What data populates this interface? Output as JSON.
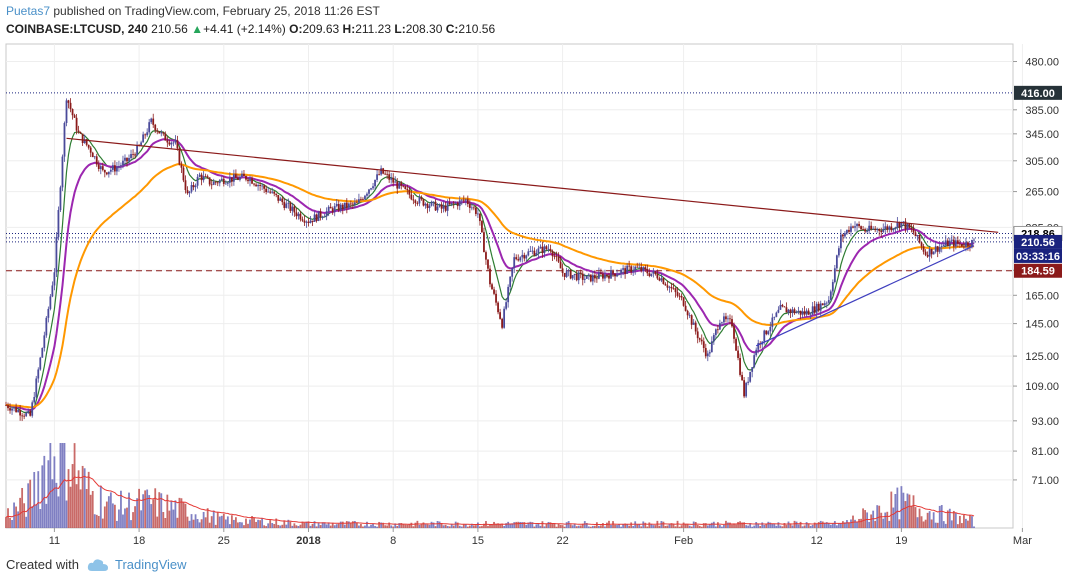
{
  "header": {
    "author": "Puetas7",
    "published_text": " published on TradingView.com, February 25, 2018 11:26 EST",
    "symbol": "COINBASE:LTCUSD, 240",
    "last": "210.56",
    "change": "+4.41 (+2.14%)",
    "o_label": "O:",
    "o_value": "209.63",
    "h_label": "H:",
    "h_value": "211.23",
    "l_label": "L:",
    "l_value": "208.30",
    "c_label": "C:",
    "c_value": "210.56"
  },
  "footer": {
    "created_with": "Created with",
    "brand": "TradingView",
    "icon": "tradingview-cloud-icon"
  },
  "colors": {
    "up": "#4a4a9a",
    "down": "#8b1a1a",
    "ema_fast": "#2e7d32",
    "ema_mid": "#9c27b0",
    "ema_slow": "#ff9800",
    "trend_top": "#8b1a1a",
    "trend_bottom": "#3f3fbf",
    "level_416": "#1a237e",
    "level_184": "#8b1a1a",
    "price_badge": "#1a237e",
    "volume_ma": "#e53935"
  },
  "chart_data": {
    "type": "candlestick",
    "title": "COINBASE:LTCUSD, 240",
    "y_scale": "log",
    "ylim": [
      57,
      520
    ],
    "x_ticks": [
      "11",
      "18",
      "25",
      "2018",
      "8",
      "15",
      "22",
      "Feb",
      "12",
      "19",
      "Mar"
    ],
    "y_ticks": [
      "480.00",
      "385.00",
      "345.00",
      "305.00",
      "265.00",
      "225.00",
      "185.00",
      "165.00",
      "145.00",
      "125.00",
      "109.00",
      "93.00",
      "81.00",
      "71.00"
    ],
    "price_labels": [
      {
        "text": "416.00",
        "value": 416,
        "style": "level"
      },
      {
        "text": "218.86",
        "value": 218.86,
        "style": "ma"
      },
      {
        "text": "210.56",
        "value": 210.56,
        "style": "price"
      },
      {
        "text": "03:33:16",
        "value": 210.56,
        "style": "countdown"
      },
      {
        "text": "184.59",
        "value": 184.59,
        "style": "support"
      }
    ],
    "horizontal_lines": [
      {
        "value": 416,
        "style": "dotted",
        "color": "#1a237e"
      },
      {
        "value": 218.86,
        "style": "dotted",
        "color": "#1a237e"
      },
      {
        "value": 214.5,
        "style": "dotted",
        "color": "#1a237e"
      },
      {
        "value": 210.56,
        "style": "dotted",
        "color": "#1a237e"
      },
      {
        "value": 184.59,
        "style": "dashed",
        "color": "#8b1a1a"
      }
    ],
    "trendlines": [
      {
        "name": "resistance",
        "from": {
          "x": "Dec 12",
          "y": 338
        },
        "to": {
          "x": "Feb 27",
          "y": 220
        }
      },
      {
        "name": "support",
        "from": {
          "x": "Feb 7",
          "y": 131
        },
        "to": {
          "x": "Feb 25",
          "y": 207
        }
      }
    ],
    "price_path": [
      [
        "Dec 7",
        100
      ],
      [
        "Dec 9",
        95
      ],
      [
        "Dec 10",
        130
      ],
      [
        "Dec 11",
        185
      ],
      [
        "Dec 12",
        410
      ],
      [
        "Dec 13",
        345
      ],
      [
        "Dec 14",
        320
      ],
      [
        "Dec 15",
        290
      ],
      [
        "Dec 16",
        295
      ],
      [
        "Dec 17",
        305
      ],
      [
        "Dec 18",
        325
      ],
      [
        "Dec 19",
        365
      ],
      [
        "Dec 20",
        340
      ],
      [
        "Dec 21",
        330
      ],
      [
        "Dec 22",
        260
      ],
      [
        "Dec 23",
        285
      ],
      [
        "Dec 24",
        275
      ],
      [
        "Dec 25",
        280
      ],
      [
        "Dec 27",
        283
      ],
      [
        "Dec 29",
        262
      ],
      [
        "Dec 31",
        240
      ],
      [
        "Jan 1",
        232
      ],
      [
        "Jan 3",
        245
      ],
      [
        "Jan 5",
        250
      ],
      [
        "Jan 7",
        290
      ],
      [
        "Jan 9",
        265
      ],
      [
        "Jan 10",
        255
      ],
      [
        "Jan 12",
        245
      ],
      [
        "Jan 13",
        250
      ],
      [
        "Jan 14",
        255
      ],
      [
        "Jan 15",
        240
      ],
      [
        "Jan 16",
        175
      ],
      [
        "Jan 17",
        145
      ],
      [
        "Jan 18",
        195
      ],
      [
        "Jan 19",
        200
      ],
      [
        "Jan 21",
        205
      ],
      [
        "Jan 22",
        183
      ],
      [
        "Jan 24",
        178
      ],
      [
        "Jan 26",
        182
      ],
      [
        "Jan 28",
        187
      ],
      [
        "Jan 30",
        180
      ],
      [
        "Feb 1",
        160
      ],
      [
        "Feb 2",
        140
      ],
      [
        "Feb 3",
        125
      ],
      [
        "Feb 4",
        148
      ],
      [
        "Feb 5",
        145
      ],
      [
        "Feb 6",
        105
      ],
      [
        "Feb 7",
        130
      ],
      [
        "Feb 8",
        142
      ],
      [
        "Feb 9",
        155
      ],
      [
        "Feb 11",
        152
      ],
      [
        "Feb 12",
        156
      ],
      [
        "Feb 13",
        162
      ],
      [
        "Feb 14",
        215
      ],
      [
        "Feb 15",
        228
      ],
      [
        "Feb 16",
        222
      ],
      [
        "Feb 17",
        223
      ],
      [
        "Feb 18",
        225
      ],
      [
        "Feb 19",
        230
      ],
      [
        "Feb 20",
        220
      ],
      [
        "Feb 21",
        200
      ],
      [
        "Feb 22",
        205
      ],
      [
        "Feb 23",
        210
      ],
      [
        "Feb 24",
        208
      ],
      [
        "Feb 25",
        210.56
      ]
    ],
    "volume_relative": [
      [
        "Dec 7",
        0.15
      ],
      [
        "Dec 9",
        0.35
      ],
      [
        "Dec 10",
        0.7
      ],
      [
        "Dec 11",
        0.9
      ],
      [
        "Dec 12",
        0.95
      ],
      [
        "Dec 13",
        0.6
      ],
      [
        "Dec 14",
        0.4
      ],
      [
        "Dec 16",
        0.25
      ],
      [
        "Dec 19",
        0.3
      ],
      [
        "Dec 22",
        0.2
      ],
      [
        "Dec 25",
        0.1
      ],
      [
        "Jan 1",
        0.05
      ],
      [
        "Feb 6",
        0.05
      ],
      [
        "Feb 14",
        0.05
      ],
      [
        "Feb 19",
        0.3
      ],
      [
        "Feb 21",
        0.2
      ],
      [
        "Feb 25",
        0.08
      ]
    ]
  }
}
